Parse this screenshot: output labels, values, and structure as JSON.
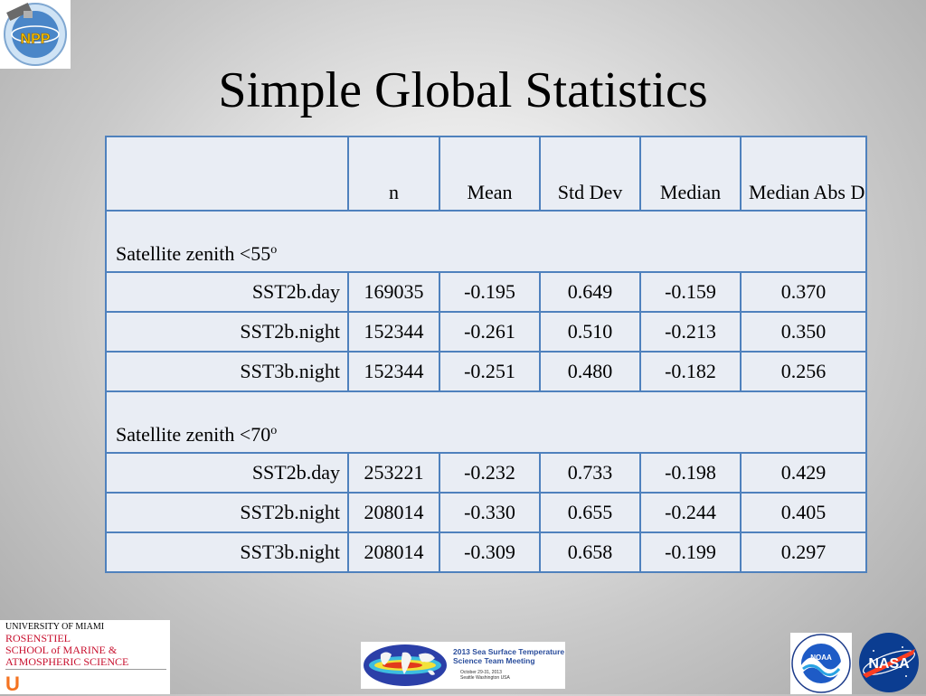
{
  "slide": {
    "title": "Simple Global Statistics"
  },
  "table": {
    "headers": {
      "n": "n",
      "mean": "Mean",
      "std_dev": "Std Dev",
      "median": "Median",
      "median_abs_diff": "Median Abs Diff"
    },
    "sections": [
      {
        "label": "Satellite zenith <55",
        "superscript": "o",
        "rows": [
          {
            "name": "SST2b.day",
            "n": "169035",
            "mean": "-0.195",
            "std_dev": "0.649",
            "median": "-0.159",
            "median_abs_diff": "0.370"
          },
          {
            "name": "SST2b.night",
            "n": "152344",
            "mean": "-0.261",
            "std_dev": "0.510",
            "median": "-0.213",
            "median_abs_diff": "0.350"
          },
          {
            "name": "SST3b.night",
            "n": "152344",
            "mean": "-0.251",
            "std_dev": "0.480",
            "median": "-0.182",
            "median_abs_diff": "0.256"
          }
        ]
      },
      {
        "label": "Satellite zenith <70",
        "superscript": "o",
        "rows": [
          {
            "name": "SST2b.day",
            "n": "253221",
            "mean": "-0.232",
            "std_dev": "0.733",
            "median": "-0.198",
            "median_abs_diff": "0.429"
          },
          {
            "name": "SST2b.night",
            "n": "208014",
            "mean": "-0.330",
            "std_dev": "0.655",
            "median": "-0.244",
            "median_abs_diff": "0.405"
          },
          {
            "name": "SST3b.night",
            "n": "208014",
            "mean": "-0.309",
            "std_dev": "0.658",
            "median": "-0.199",
            "median_abs_diff": "0.297"
          }
        ]
      }
    ]
  },
  "logos": {
    "npp": {
      "text": "NPP"
    },
    "university": {
      "line1": "UNIVERSITY OF MIAMI",
      "line2": "ROSENSTIEL",
      "line3": "SCHOOL of MARINE &",
      "line4": "ATMOSPHERIC SCIENCE",
      "mark": "U"
    },
    "meeting_banner": {
      "title_line1": "2013 Sea Surface Temperature",
      "title_line2": "Science Team Meeting",
      "date": "October 29-31, 2013",
      "place": "Seattle Washington USA"
    },
    "noaa": {
      "text": "NOAA"
    },
    "nasa": {
      "text": "NASA"
    }
  },
  "colors": {
    "table_border": "#4f81bd",
    "table_fill": "#e9edf4",
    "um_red": "#c8102e",
    "um_orange": "#f47321"
  }
}
